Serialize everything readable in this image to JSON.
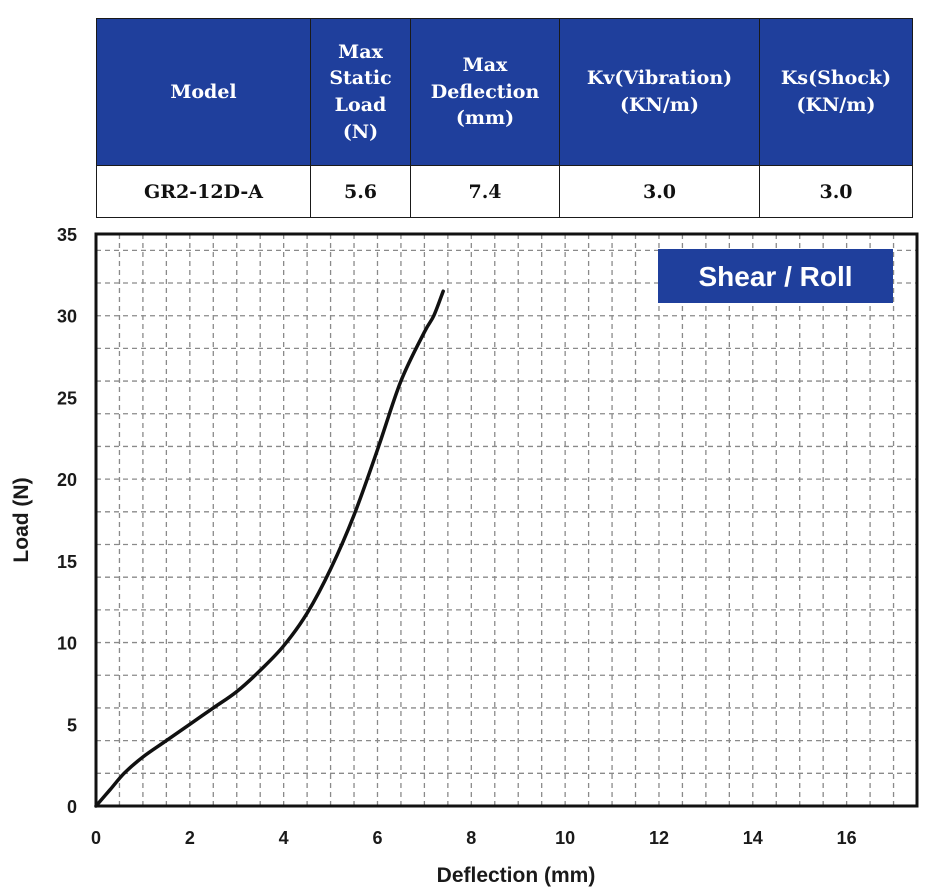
{
  "table": {
    "headers": [
      [
        "Model"
      ],
      [
        "Max",
        "Static",
        "Load",
        "(N)"
      ],
      [
        "Max",
        "Deflection",
        "(mm)"
      ],
      [
        "Kv(Vibration)",
        "(KN/m)"
      ],
      [
        "Ks(Shock)",
        "(KN/m)"
      ]
    ],
    "row": [
      "GR2-12D-A",
      "5.6",
      "7.4",
      "3.0",
      "3.0"
    ]
  },
  "colors": {
    "header_bg": "#1f3f9c",
    "badge_bg": "#1f3f9c",
    "curve": "#111111",
    "grid": "#8a8a8a"
  },
  "chart_data": {
    "type": "line",
    "title": "Shear / Roll",
    "xlabel": "Deflection (mm)",
    "ylabel": "Load (N)",
    "xlim": [
      0,
      17.5
    ],
    "ylim": [
      0,
      35
    ],
    "xticks": [
      0,
      2,
      4,
      6,
      8,
      10,
      12,
      14,
      16
    ],
    "yticks": [
      0,
      5,
      10,
      15,
      20,
      25,
      30,
      35
    ],
    "grid": true,
    "series": [
      {
        "x": [
          0,
          0.3,
          0.6,
          1.0,
          1.5,
          2.0,
          2.5,
          3.0,
          3.5,
          4.0,
          4.5,
          5.0,
          5.5,
          6.0,
          6.5,
          7.0,
          7.2,
          7.4
        ],
        "y": [
          0,
          1.0,
          2.0,
          3.0,
          4.0,
          5.0,
          6.0,
          7.0,
          8.3,
          9.8,
          11.8,
          14.5,
          17.8,
          21.8,
          26.0,
          29.0,
          30.0,
          31.5
        ]
      }
    ]
  }
}
